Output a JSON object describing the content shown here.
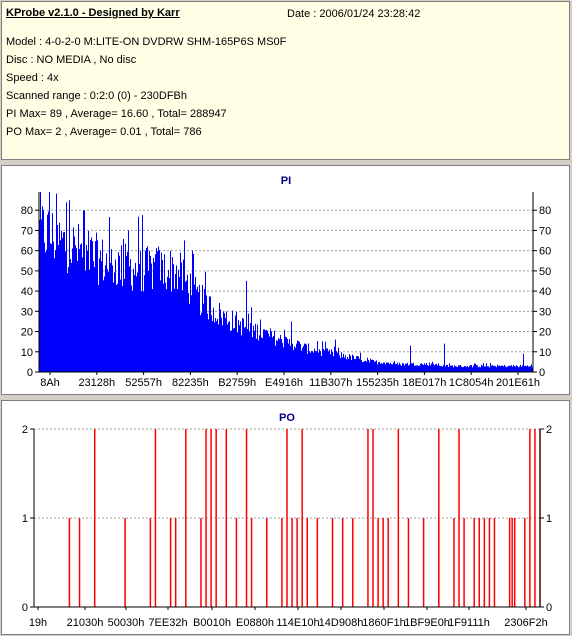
{
  "info": {
    "app_title": "KProbe v2.1.0 - Designed by Karr",
    "date": "Date : 2006/01/24 23:28:42",
    "model": "Model : 4-0-2-0 M:LITE-ON DVDRW SHM-165P6S MS0F",
    "disc": "Disc : NO MEDIA , No disc",
    "speed": "Speed : 4x",
    "scanned_range": "Scanned range : 0:2:0 (0) - 230DFBh",
    "pi_summary": "PI Max= 89 , Average= 16.60 , Total= 288947",
    "po_summary": "PO Max= 2 , Average= 0.01 , Total= 786"
  },
  "colors": {
    "pi": "#0000ff",
    "po": "#ff0000",
    "title": "#000080",
    "panel_bg": "#d4d0c8",
    "info_bg": "#ffffe6"
  },
  "chart_data": [
    {
      "type": "bar",
      "title": "PI",
      "ylim": [
        0,
        89
      ],
      "yticks": [
        0,
        10,
        20,
        30,
        40,
        50,
        60,
        70,
        80
      ],
      "xticks": [
        "8Ah",
        "23128h",
        "52557h",
        "82235h",
        "B2759h",
        "E4916h",
        "11B307h",
        "155235h",
        "18E017h",
        "1C8054h",
        "201E61h"
      ],
      "grid": true,
      "profile": [
        [
          0,
          72
        ],
        [
          2,
          70
        ],
        [
          4,
          66
        ],
        [
          6,
          64
        ],
        [
          8,
          62
        ],
        [
          10,
          59
        ],
        [
          12,
          57
        ],
        [
          14,
          55
        ],
        [
          16,
          54
        ],
        [
          18,
          53
        ],
        [
          20,
          52
        ],
        [
          22,
          52
        ],
        [
          24,
          52
        ],
        [
          26,
          52
        ],
        [
          28,
          51
        ],
        [
          30,
          45
        ],
        [
          32,
          38
        ],
        [
          34,
          34
        ],
        [
          36,
          30
        ],
        [
          38,
          27
        ],
        [
          40,
          25
        ],
        [
          42,
          22
        ],
        [
          44,
          21
        ],
        [
          46,
          19
        ],
        [
          48,
          17
        ],
        [
          50,
          15
        ],
        [
          52,
          14
        ],
        [
          54,
          12
        ],
        [
          56,
          11
        ],
        [
          58,
          10
        ],
        [
          60,
          9
        ],
        [
          62,
          8
        ],
        [
          64,
          7
        ],
        [
          66,
          6
        ],
        [
          68,
          5
        ],
        [
          70,
          5
        ],
        [
          72,
          4
        ],
        [
          74,
          4
        ],
        [
          76,
          4
        ],
        [
          78,
          4
        ],
        [
          80,
          4
        ],
        [
          82,
          3
        ],
        [
          84,
          3
        ],
        [
          86,
          3
        ],
        [
          88,
          3
        ],
        [
          90,
          3
        ],
        [
          92,
          3
        ],
        [
          94,
          3
        ],
        [
          96,
          3
        ],
        [
          98,
          3
        ],
        [
          100,
          3
        ]
      ],
      "spikes": [
        [
          2,
          89
        ],
        [
          6,
          85
        ],
        [
          9,
          80
        ],
        [
          18,
          70
        ],
        [
          24,
          62
        ],
        [
          31,
          60
        ],
        [
          42,
          45
        ],
        [
          51,
          25
        ],
        [
          60,
          16
        ],
        [
          75,
          13
        ],
        [
          82,
          14
        ],
        [
          98,
          9
        ]
      ]
    },
    {
      "type": "bar",
      "title": "PO",
      "ylim": [
        0,
        2
      ],
      "yticks": [
        0,
        1,
        2
      ],
      "xticks": [
        "19h",
        "21030h",
        "50030h",
        "7EE32h",
        "B0010h",
        "E0880h",
        "114E10h",
        "14D908h",
        "1860F1h",
        "1BF9E0h",
        "1F9111h",
        "2306F2h"
      ],
      "grid": true,
      "events": [
        [
          7,
          1
        ],
        [
          9,
          1
        ],
        [
          12,
          2
        ],
        [
          18,
          1
        ],
        [
          23,
          1
        ],
        [
          24,
          2
        ],
        [
          27,
          1
        ],
        [
          28,
          1
        ],
        [
          30,
          2
        ],
        [
          33,
          1
        ],
        [
          34,
          2
        ],
        [
          38,
          2
        ],
        [
          40,
          1
        ],
        [
          42,
          2
        ],
        [
          46,
          1
        ],
        [
          49,
          1
        ],
        [
          50,
          2
        ],
        [
          51,
          1
        ],
        [
          52,
          1
        ],
        [
          53,
          2
        ],
        [
          56,
          1
        ],
        [
          59,
          1
        ],
        [
          61,
          1
        ],
        [
          63,
          1
        ],
        [
          66,
          2
        ],
        [
          69,
          1
        ],
        [
          70,
          1
        ],
        [
          72,
          2
        ],
        [
          74,
          1
        ],
        [
          77,
          1
        ],
        [
          80,
          1
        ],
        [
          83,
          1
        ],
        [
          85,
          1
        ],
        [
          87,
          1
        ],
        [
          89,
          1
        ],
        [
          94,
          1
        ],
        [
          95,
          1
        ],
        [
          98,
          2
        ],
        [
          99,
          2
        ],
        [
          100,
          2
        ],
        [
          35,
          2
        ],
        [
          36,
          2
        ],
        [
          43,
          1
        ],
        [
          54,
          1
        ],
        [
          67,
          2
        ],
        [
          68,
          1
        ],
        [
          80,
          2
        ],
        [
          84,
          2
        ],
        [
          88,
          1
        ],
        [
          90,
          1
        ],
        [
          91,
          1
        ],
        [
          94.5,
          1
        ],
        [
          97,
          1
        ]
      ]
    }
  ]
}
